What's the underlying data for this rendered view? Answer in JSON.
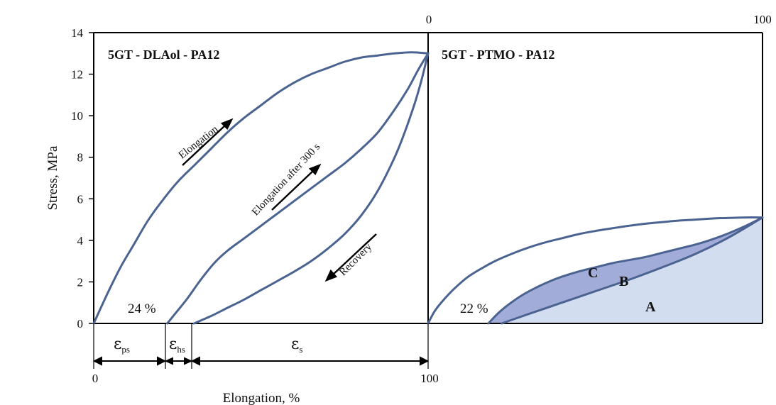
{
  "colors": {
    "curve": "#4a6391",
    "region_a": "#d3ddf0",
    "region_b": "#a2acd9",
    "axis": "#000000"
  },
  "chart_data": {
    "type": "line",
    "ylabel": "Stress, MPa",
    "xlabel": "Elongation, %",
    "ylim": [
      0,
      14
    ],
    "y_ticks": [
      "0",
      "2",
      "4",
      "6",
      "8",
      "10",
      "12",
      "14"
    ],
    "left_x_ticks": [
      "0",
      "100"
    ],
    "right_x_ticks": [
      "0",
      "100"
    ],
    "grid": false,
    "panels": [
      {
        "title": "5GT - DLAol - PA12",
        "xlim": [
          0,
          100
        ],
        "series": [
          {
            "role": "elongation",
            "x": [
              0,
              4,
              8,
              12,
              16,
              20,
              25,
              30,
              35,
              40,
              45,
              50,
              55,
              60,
              65,
              70,
              75,
              80,
              85,
              90,
              95,
              100
            ],
            "y": [
              0,
              1.4,
              2.7,
              3.8,
              4.9,
              5.8,
              6.8,
              7.6,
              8.4,
              9.2,
              9.9,
              10.5,
              11.1,
              11.6,
              12.0,
              12.3,
              12.6,
              12.8,
              12.9,
              13.0,
              13.05,
              13.0
            ]
          },
          {
            "role": "elongation-after-300s",
            "x": [
              22,
              25,
              28,
              32,
              36,
              40,
              45,
              50,
              55,
              60,
              65,
              70,
              75,
              80,
              85,
              90,
              94,
              97,
              100
            ],
            "y": [
              0,
              0.6,
              1.2,
              2.1,
              2.9,
              3.5,
              4.1,
              4.7,
              5.3,
              5.9,
              6.5,
              7.1,
              7.7,
              8.4,
              9.2,
              10.3,
              11.3,
              12.2,
              13.0
            ]
          },
          {
            "role": "recovery",
            "x": [
              30,
              35,
              40,
              45,
              50,
              55,
              60,
              65,
              70,
              75,
              80,
              85,
              90,
              93,
              96,
              98,
              100
            ],
            "y": [
              0,
              0.35,
              0.75,
              1.15,
              1.6,
              2.05,
              2.5,
              3.0,
              3.6,
              4.3,
              5.2,
              6.4,
              8.0,
              9.2,
              10.6,
              11.7,
              13.0
            ]
          }
        ],
        "annotations": {
          "elongation": "Elongation",
          "elongation_after": "Elongation after 300 s",
          "recovery": "Recovery",
          "percent": "24 %",
          "eps_ps": {
            "symbol": "ε",
            "sub": "ps"
          },
          "eps_hs": {
            "symbol": "ε",
            "sub": "hs"
          },
          "eps_s": {
            "symbol": "ε",
            "sub": "s"
          }
        }
      },
      {
        "title": "5GT - PTMO - PA12",
        "xlim": [
          0,
          100
        ],
        "series": [
          {
            "role": "elongation",
            "x": [
              0,
              2,
              5,
              8,
              12,
              16,
              20,
              25,
              30,
              35,
              40,
              45,
              50,
              55,
              60,
              65,
              70,
              75,
              80,
              85,
              90,
              95,
              100
            ],
            "y": [
              0,
              0.6,
              1.2,
              1.7,
              2.25,
              2.65,
              3.0,
              3.35,
              3.65,
              3.9,
              4.1,
              4.3,
              4.45,
              4.58,
              4.7,
              4.8,
              4.88,
              4.95,
              5.0,
              5.05,
              5.08,
              5.1,
              5.1
            ]
          },
          {
            "role": "elongation-after",
            "x": [
              18,
              21,
              24,
              28,
              32,
              36,
              40,
              45,
              50,
              55,
              60,
              65,
              70,
              75,
              80,
              85,
              90,
              95,
              100
            ],
            "y": [
              0,
              0.5,
              0.9,
              1.35,
              1.7,
              2.0,
              2.25,
              2.5,
              2.7,
              2.9,
              3.05,
              3.2,
              3.4,
              3.6,
              3.8,
              4.05,
              4.35,
              4.7,
              5.1
            ]
          },
          {
            "role": "recovery",
            "x": [
              22,
              30,
              40,
              50,
              60,
              70,
              80,
              90,
              100
            ],
            "y": [
              0,
              0.45,
              1.0,
              1.55,
              2.1,
              2.7,
              3.35,
              4.15,
              5.1
            ]
          }
        ],
        "annotations": {
          "percent": "22 %",
          "region_a": "A",
          "region_b": "B",
          "region_c": "C"
        }
      }
    ]
  }
}
